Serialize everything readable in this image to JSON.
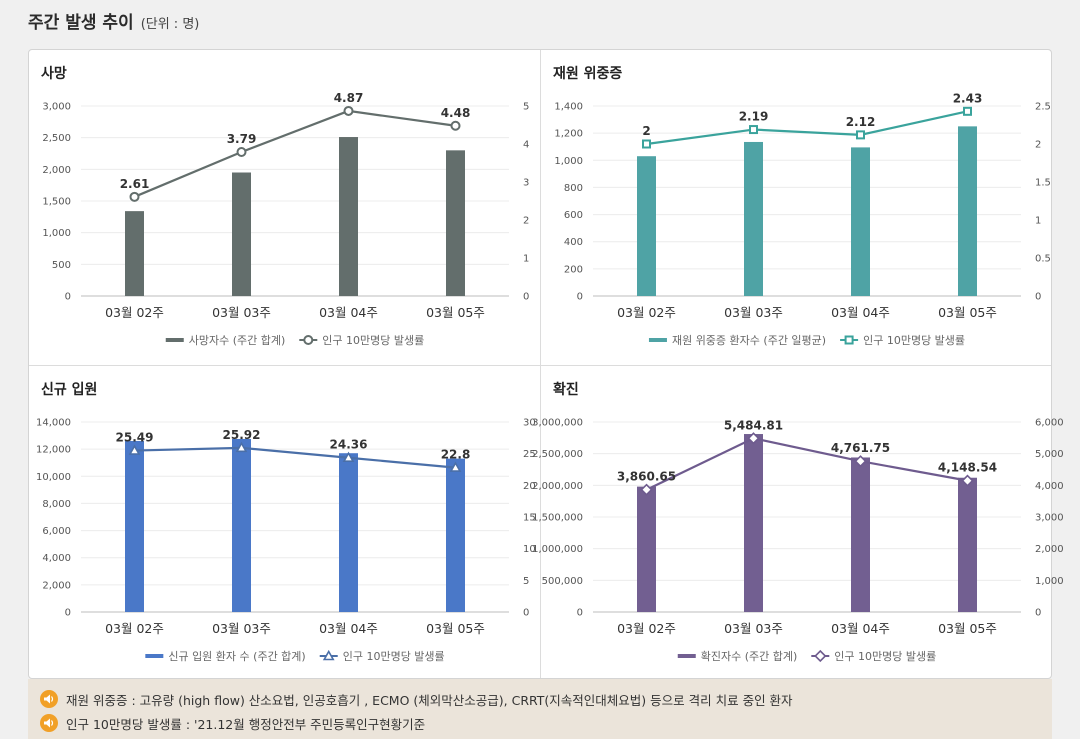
{
  "header": {
    "title": "주간 발생 추이",
    "unit": "(단위 : 명)"
  },
  "chart_data": [
    {
      "id": "deaths",
      "type": "bar+line",
      "title": "사망",
      "categories": [
        "03월 02주",
        "03월 03주",
        "03월 04주",
        "03월 05주"
      ],
      "bar": {
        "name": "사망자수 (주간 합계)",
        "values": [
          1340,
          1950,
          2510,
          2300
        ],
        "color": "#636e6c"
      },
      "line": {
        "name": "인구 10만명당 발생률",
        "values": [
          2.61,
          3.79,
          4.87,
          4.48
        ],
        "labels": [
          "2.61",
          "3.79",
          "4.87",
          "4.48"
        ],
        "color": "#636e6c",
        "marker": "circle"
      },
      "y_left": {
        "min": 0,
        "max": 3000,
        "ticks": [
          0,
          500,
          1000,
          1500,
          2000,
          2500,
          3000
        ],
        "tick_labels": [
          "0",
          "500",
          "1,000",
          "1,500",
          "2,000",
          "2,500",
          "3,000"
        ]
      },
      "y_right": {
        "min": 0,
        "max": 5,
        "ticks": [
          0,
          1,
          2,
          3,
          4,
          5
        ],
        "tick_labels": [
          "0",
          "1",
          "2",
          "3",
          "4",
          "5"
        ]
      }
    },
    {
      "id": "severe",
      "type": "bar+line",
      "title": "재원 위중증",
      "categories": [
        "03월 02주",
        "03월 03주",
        "03월 04주",
        "03월 05주"
      ],
      "bar": {
        "name": "재원 위중증 환자수 (주간 일평균)",
        "values": [
          1030,
          1135,
          1095,
          1250
        ],
        "color": "#4fa3a5"
      },
      "line": {
        "name": "인구 10만명당 발생률",
        "values": [
          2,
          2.19,
          2.12,
          2.43
        ],
        "labels": [
          "2",
          "2.19",
          "2.12",
          "2.43"
        ],
        "color": "#3aa39c",
        "marker": "square"
      },
      "y_left": {
        "min": 0,
        "max": 1400,
        "ticks": [
          0,
          200,
          400,
          600,
          800,
          1000,
          1200,
          1400
        ],
        "tick_labels": [
          "0",
          "200",
          "400",
          "600",
          "800",
          "1,000",
          "1,200",
          "1,400"
        ]
      },
      "y_right": {
        "min": 0,
        "max": 2.5,
        "ticks": [
          0,
          0.5,
          1,
          1.5,
          2,
          2.5
        ],
        "tick_labels": [
          "0",
          "0.5",
          "1",
          "1.5",
          "2",
          "2.5"
        ]
      }
    },
    {
      "id": "admissions",
      "type": "bar+line",
      "title": "신규 입원",
      "categories": [
        "03월 02주",
        "03월 03주",
        "03월 04주",
        "03월 05주"
      ],
      "bar": {
        "name": "신규 입원 환자 수 (주간 합계)",
        "values": [
          12600,
          12750,
          11700,
          11300
        ],
        "color": "#4a78c8"
      },
      "line": {
        "name": "인구 10만명당 발생률",
        "values": [
          25.49,
          25.92,
          24.36,
          22.8
        ],
        "labels": [
          "25.49",
          "25.92",
          "24.36",
          "22.8"
        ],
        "color": "#4a6fa8",
        "marker": "triangle"
      },
      "y_left": {
        "min": 0,
        "max": 14000,
        "ticks": [
          0,
          2000,
          4000,
          6000,
          8000,
          10000,
          12000,
          14000
        ],
        "tick_labels": [
          "0",
          "2,000",
          "4,000",
          "6,000",
          "8,000",
          "10,000",
          "12,000",
          "14,000"
        ]
      },
      "y_right": {
        "min": 0,
        "max": 30,
        "ticks": [
          0,
          5,
          10,
          15,
          20,
          25,
          30
        ],
        "tick_labels": [
          "0",
          "5",
          "10",
          "15",
          "20",
          "25",
          "30"
        ]
      }
    },
    {
      "id": "confirmed",
      "type": "bar+line",
      "title": "확진",
      "categories": [
        "03월 02주",
        "03월 03주",
        "03월 04주",
        "03월 05주"
      ],
      "bar": {
        "name": "확진자수 (주간 합계)",
        "values": [
          1980000,
          2810000,
          2440000,
          2120000
        ],
        "color": "#725f91"
      },
      "line": {
        "name": "인구 10만명당 발생률",
        "values": [
          3860.65,
          5484.81,
          4761.75,
          4148.54
        ],
        "labels": [
          "3,860.65",
          "5,484.81",
          "4,761.75",
          "4,148.54"
        ],
        "color": "#6e5b8e",
        "marker": "diamond"
      },
      "y_left": {
        "min": 0,
        "max": 3000000,
        "ticks": [
          0,
          500000,
          1000000,
          1500000,
          2000000,
          2500000,
          3000000
        ],
        "tick_labels": [
          "0",
          "500,000",
          "1,000,000",
          "1,500,000",
          "2,000,000",
          "2,500,000",
          "3,000,000"
        ]
      },
      "y_right": {
        "min": 0,
        "max": 6000,
        "ticks": [
          0,
          1000,
          2000,
          3000,
          4000,
          5000,
          6000
        ],
        "tick_labels": [
          "0",
          "1,000",
          "2,000",
          "3,000",
          "4,000",
          "5,000",
          "6,000"
        ]
      }
    }
  ],
  "notes": [
    "재원 위중증 : 고유량 (high flow) 산소요법, 인공호흡기 , ECMO (체외막산소공급), CRRT(지속적인대체요법) 등으로 격리 치료 중인 환자",
    "인구 10만명당 발생률 : '21.12월 행정안전부 주민등록인구현황기준"
  ]
}
